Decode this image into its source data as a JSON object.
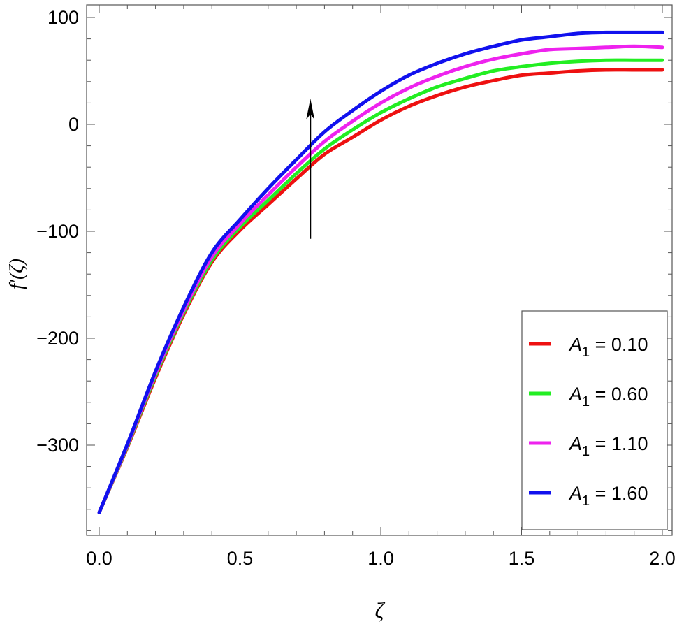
{
  "chart_data": {
    "type": "line",
    "xlabel": "ζ",
    "ylabel": "f′(ζ)",
    "xlim": [
      0,
      2.0
    ],
    "ylim": [
      -385,
      110
    ],
    "xticks": [
      0.0,
      0.5,
      1.0,
      1.5,
      2.0
    ],
    "xtick_labels": [
      "0.0",
      "0.5",
      "1.0",
      "1.5",
      "2.0"
    ],
    "yticks": [
      100,
      0,
      -100,
      -200,
      -300
    ],
    "ytick_labels": [
      "100",
      "0",
      "-100",
      "-200",
      "-300"
    ],
    "grid": false,
    "legend_position": "bottom-right",
    "arrow": {
      "x": 0.75,
      "y_from": -107,
      "y_to": 24,
      "meaning": "increasing A1"
    },
    "series": [
      {
        "name": "A1 = 0.10",
        "label_var": "A",
        "label_sub": "1",
        "label_value": " = 0.10",
        "color": "#ee1111",
        "x": [
          0,
          0.1,
          0.2,
          0.3,
          0.4,
          0.5,
          0.6,
          0.7,
          0.8,
          0.9,
          1.0,
          1.1,
          1.2,
          1.3,
          1.4,
          1.5,
          1.6,
          1.7,
          1.8,
          1.9,
          2.0
        ],
        "values": [
          -363,
          -302,
          -237,
          -178,
          -129,
          -99,
          -75,
          -51,
          -28,
          -12,
          4,
          17,
          27,
          35,
          41,
          46,
          48,
          50,
          51,
          51,
          51
        ]
      },
      {
        "name": "A1 = 0.60",
        "label_var": "A",
        "label_sub": "1",
        "label_value": " = 0.60",
        "color": "#22ee22",
        "x": [
          0,
          0.1,
          0.2,
          0.3,
          0.4,
          0.5,
          0.6,
          0.7,
          0.8,
          0.9,
          1.0,
          1.1,
          1.2,
          1.3,
          1.4,
          1.5,
          1.6,
          1.7,
          1.8,
          1.9,
          2.0
        ],
        "values": [
          -363,
          -301,
          -235,
          -176,
          -127,
          -96,
          -71,
          -46,
          -23,
          -5,
          11,
          24,
          35,
          43,
          50,
          54,
          57,
          59,
          60,
          60,
          60
        ]
      },
      {
        "name": "A1 = 1.10",
        "label_var": "A",
        "label_sub": "1",
        "label_value": " = 1.10",
        "color": "#ee22ee",
        "x": [
          0,
          0.1,
          0.2,
          0.3,
          0.4,
          0.5,
          0.6,
          0.7,
          0.8,
          0.9,
          1.0,
          1.1,
          1.2,
          1.3,
          1.4,
          1.5,
          1.6,
          1.7,
          1.8,
          1.9,
          2.0
        ],
        "values": [
          -363,
          -300,
          -233,
          -174,
          -124,
          -93,
          -66,
          -40,
          -16,
          3,
          20,
          34,
          45,
          54,
          61,
          66,
          70,
          71,
          72,
          73,
          72
        ]
      },
      {
        "name": "A1 = 1.60",
        "label_var": "A",
        "label_sub": "1",
        "label_value": " = 1.60",
        "color": "#1111ee",
        "x": [
          0,
          0.1,
          0.2,
          0.3,
          0.4,
          0.5,
          0.6,
          0.7,
          0.8,
          0.9,
          1.0,
          1.1,
          1.2,
          1.3,
          1.4,
          1.5,
          1.6,
          1.7,
          1.8,
          1.9,
          2.0
        ],
        "values": [
          -363,
          -299,
          -231,
          -171,
          -120,
          -89,
          -60,
          -33,
          -7,
          13,
          31,
          46,
          57,
          66,
          73,
          79,
          82,
          85,
          86,
          86,
          86
        ]
      }
    ]
  }
}
